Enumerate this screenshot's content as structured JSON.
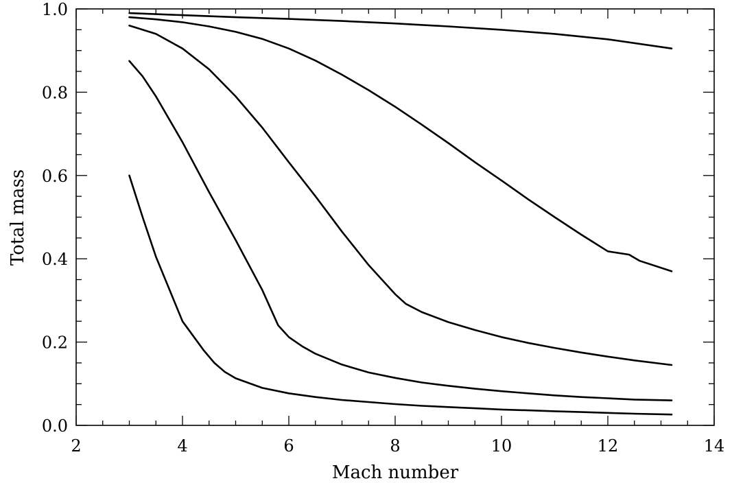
{
  "chart_data": {
    "type": "line",
    "xlabel": "Mach number",
    "ylabel": "Total mass",
    "xlim": [
      2,
      14
    ],
    "ylim": [
      0.0,
      1.0
    ],
    "x_ticks": [
      "2",
      "4",
      "6",
      "8",
      "10",
      "12",
      "14"
    ],
    "y_ticks": [
      "0.0",
      "0.2",
      "0.4",
      "0.6",
      "0.8",
      "1.0"
    ],
    "x_minor_step": 0.5,
    "y_minor_step": 0.05,
    "grid": false,
    "legend": "none",
    "line_color": "#000000",
    "series": [
      {
        "x": [
          3,
          4,
          5,
          6,
          7,
          8,
          9,
          10,
          11,
          12,
          13.2
        ],
        "y": [
          0.99,
          0.985,
          0.98,
          0.976,
          0.971,
          0.965,
          0.958,
          0.95,
          0.94,
          0.927,
          0.905
        ]
      },
      {
        "x": [
          3,
          3.5,
          4,
          4.5,
          5,
          5.5,
          6,
          6.5,
          7,
          7.5,
          8,
          8.5,
          9,
          9.5,
          10,
          10.5,
          11,
          11.5,
          12,
          12.4,
          12.6,
          13.2
        ],
        "y": [
          0.98,
          0.975,
          0.968,
          0.958,
          0.945,
          0.928,
          0.905,
          0.876,
          0.842,
          0.805,
          0.765,
          0.722,
          0.678,
          0.632,
          0.588,
          0.543,
          0.5,
          0.458,
          0.418,
          0.41,
          0.395,
          0.37
        ]
      },
      {
        "x": [
          3,
          3.5,
          4,
          4.5,
          5,
          5.5,
          6,
          6.5,
          7,
          7.5,
          8,
          8.2,
          8.5,
          9,
          9.5,
          10,
          10.5,
          11,
          11.5,
          12,
          12.5,
          13.2
        ],
        "y": [
          0.96,
          0.94,
          0.905,
          0.855,
          0.79,
          0.715,
          0.632,
          0.55,
          0.465,
          0.385,
          0.315,
          0.292,
          0.272,
          0.248,
          0.229,
          0.212,
          0.198,
          0.186,
          0.175,
          0.165,
          0.156,
          0.145
        ]
      },
      {
        "x": [
          3,
          3.25,
          3.5,
          4,
          4.5,
          5,
          5.5,
          5.8,
          6,
          6.25,
          6.5,
          7,
          7.5,
          8,
          8.5,
          9,
          9.5,
          10,
          10.5,
          11,
          11.5,
          12,
          12.5,
          13.2
        ],
        "y": [
          0.875,
          0.838,
          0.79,
          0.68,
          0.56,
          0.445,
          0.325,
          0.24,
          0.212,
          0.19,
          0.172,
          0.146,
          0.127,
          0.114,
          0.103,
          0.095,
          0.088,
          0.082,
          0.077,
          0.072,
          0.068,
          0.065,
          0.062,
          0.06
        ]
      },
      {
        "x": [
          3,
          3.25,
          3.5,
          4,
          4.4,
          4.6,
          4.8,
          5,
          5.5,
          6,
          6.5,
          7,
          7.5,
          8,
          8.5,
          9,
          9.5,
          10,
          10.5,
          11,
          11.5,
          12,
          12.5,
          13.2
        ],
        "y": [
          0.6,
          0.5,
          0.405,
          0.25,
          0.18,
          0.15,
          0.128,
          0.113,
          0.09,
          0.077,
          0.068,
          0.061,
          0.056,
          0.051,
          0.047,
          0.044,
          0.041,
          0.038,
          0.036,
          0.034,
          0.032,
          0.03,
          0.028,
          0.026
        ]
      }
    ]
  }
}
